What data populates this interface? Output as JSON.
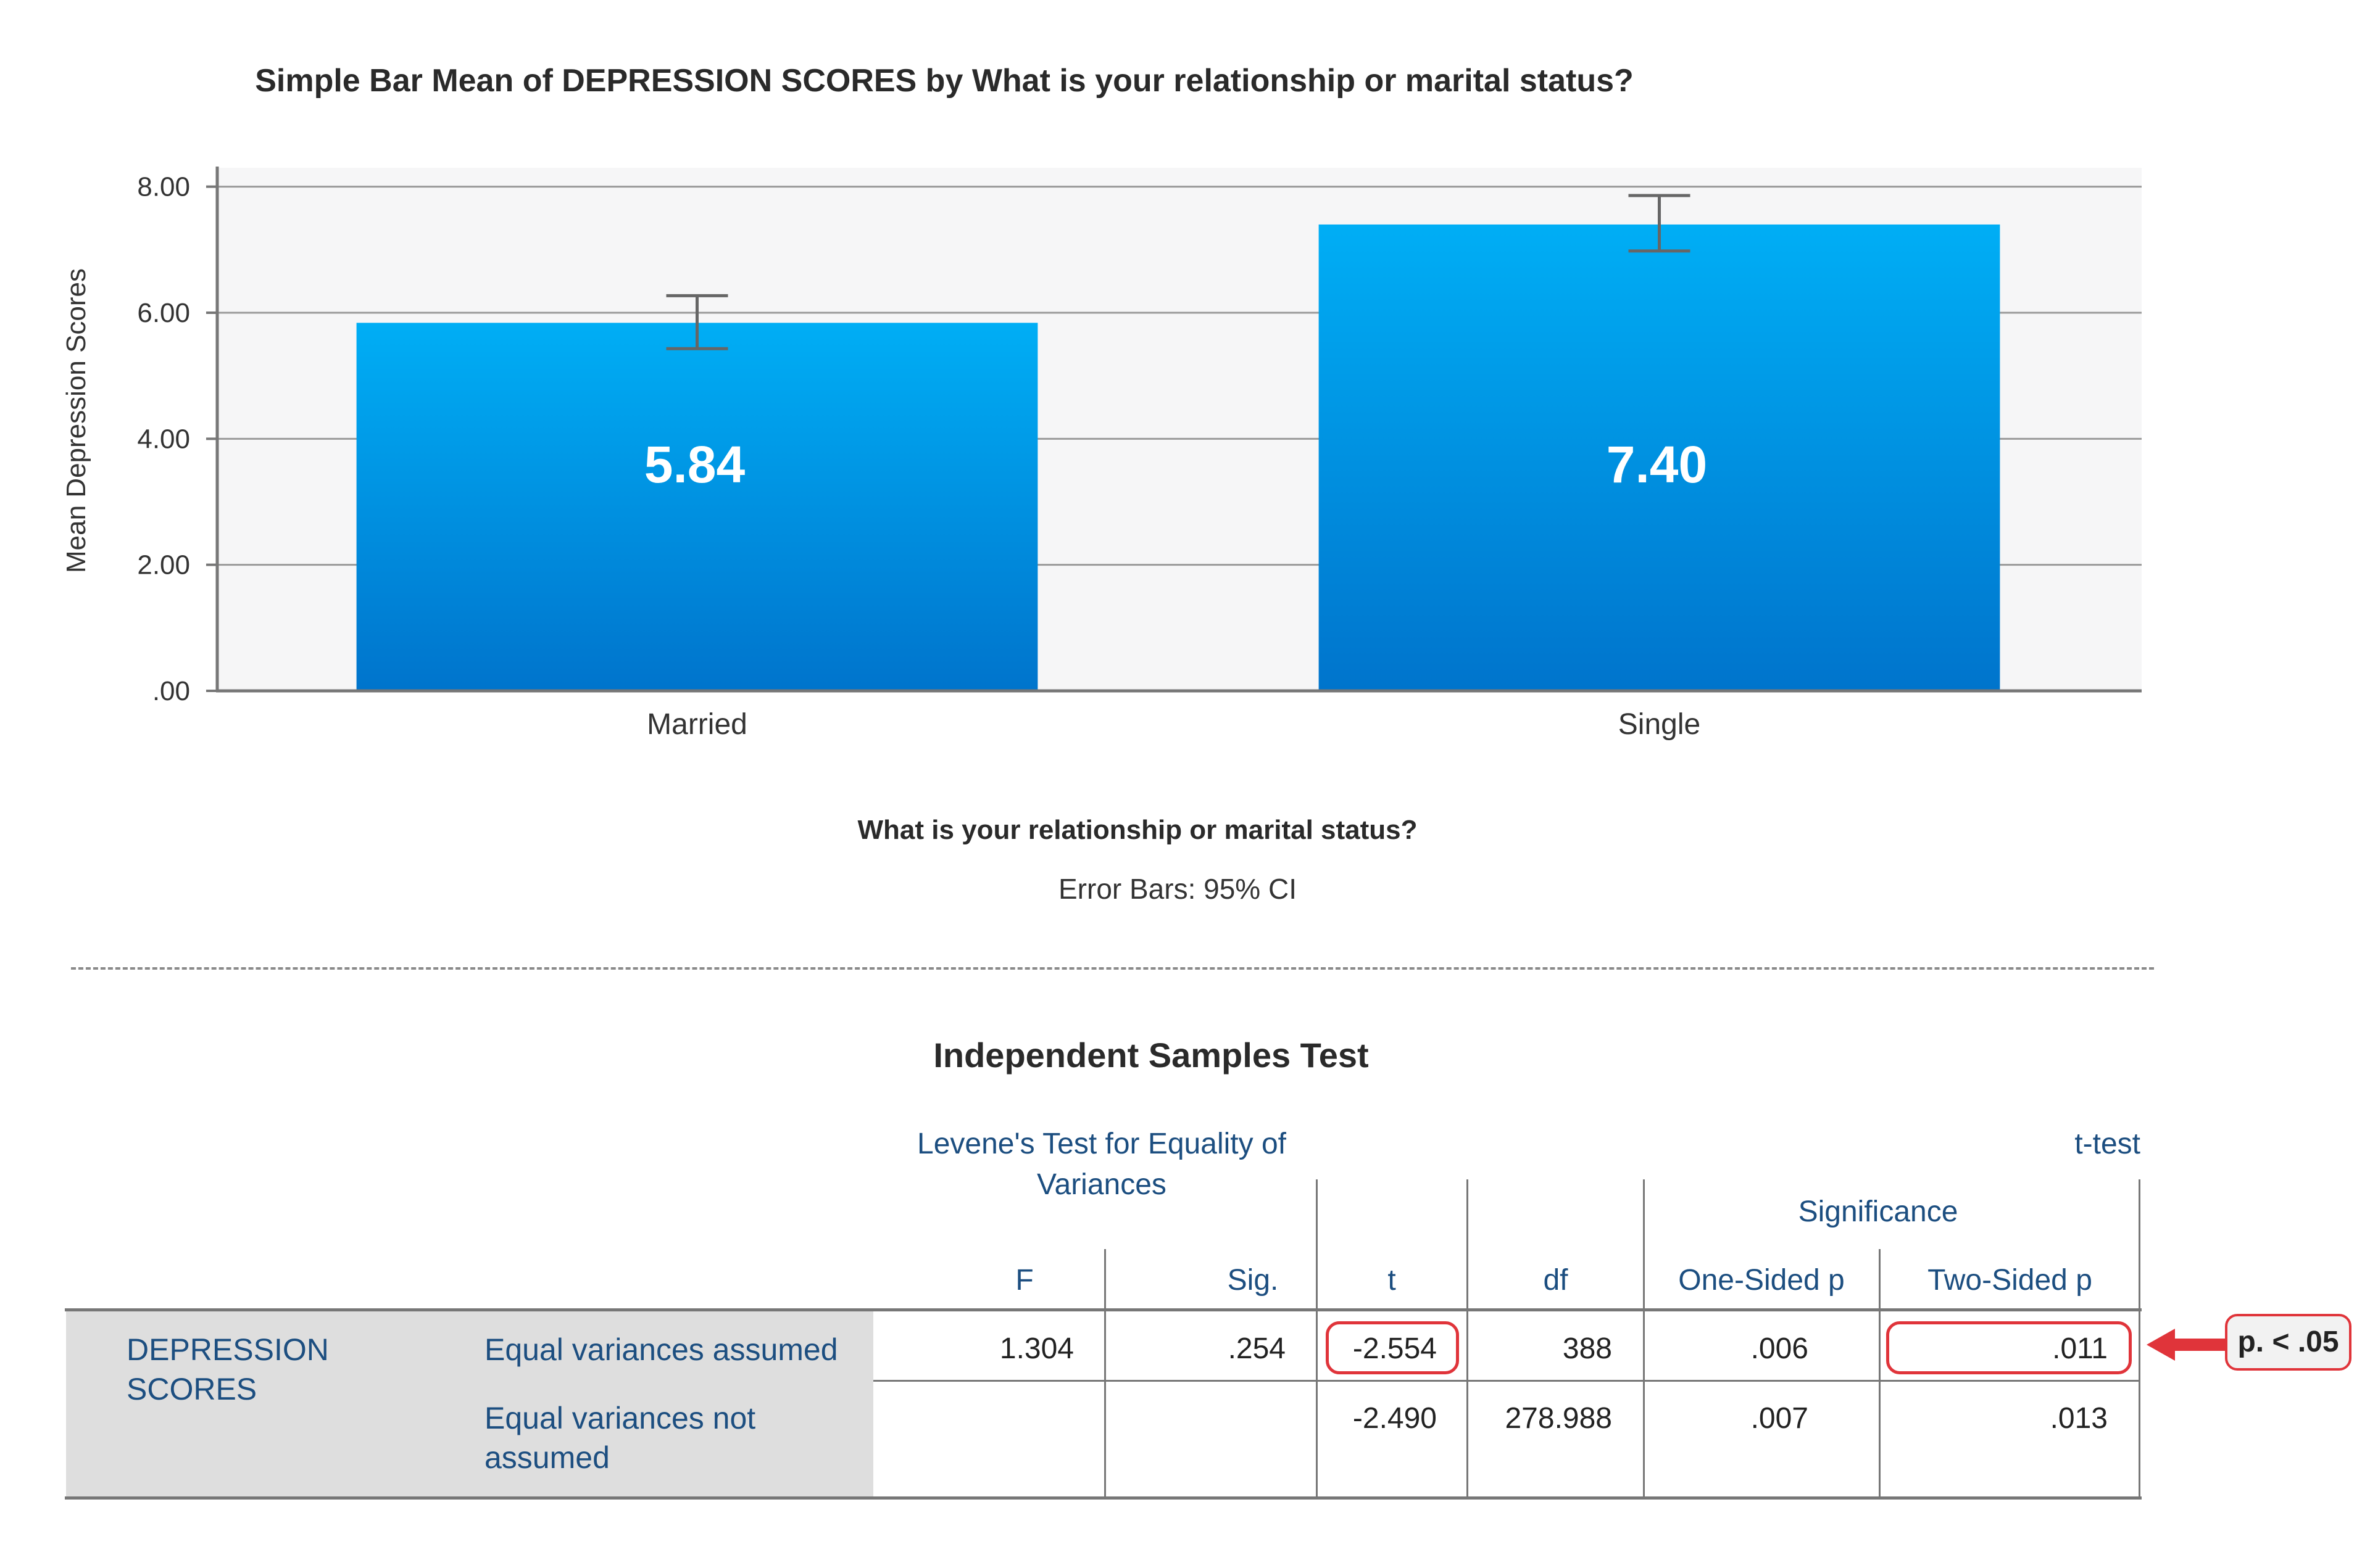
{
  "chart_data": {
    "type": "bar",
    "title": "Simple Bar Mean of DEPRESSION SCORES by What is your relationship or marital status?",
    "categories": [
      "Married",
      "Single"
    ],
    "values": [
      5.84,
      7.4
    ],
    "value_labels": [
      "5.84",
      "7.40"
    ],
    "error_bars": {
      "type": "95% CI",
      "lower": [
        5.43,
        6.98
      ],
      "upper": [
        6.27,
        7.86
      ]
    },
    "xlabel": "What is your relationship or marital status?",
    "ylabel": "Mean Depression Scores",
    "ylim": [
      0,
      8.3
    ],
    "yticks": [
      0,
      2,
      4,
      6,
      8
    ],
    "ytick_labels": [
      ".00",
      "2.00",
      "4.00",
      "6.00",
      "8.00"
    ],
    "note": "Error Bars: 95% CI",
    "grid": true,
    "colors": {
      "bar_top": "#00aef5",
      "bar_bottom": "#0074cc",
      "plot_bg": "#f6f6f7",
      "grid": "#9a9a9a",
      "axis": "#777777"
    }
  },
  "table": {
    "title": "Independent Samples Test",
    "levene_header": "Levene's Test for Equality of Variances",
    "ttest_header": "t-test",
    "significance_header": "Significance",
    "columns": [
      "F",
      "Sig.",
      "t",
      "df",
      "One-Sided p",
      "Two-Sided p"
    ],
    "group_label": "DEPRESSION SCORES",
    "rows": [
      {
        "label": "Equal variances assumed",
        "F": "1.304",
        "sig": ".254",
        "t": "-2.554",
        "df": "388",
        "one_sided": ".006",
        "two_sided": ".011"
      },
      {
        "label": "Equal variances not assumed",
        "F": "",
        "sig": "",
        "t": "-2.490",
        "df": "278.988",
        "one_sided": ".007",
        "two_sided": ".013"
      }
    ],
    "callout": "p. < .05",
    "highlight_color": "#e0343a",
    "header_color": "#1c4e80"
  }
}
